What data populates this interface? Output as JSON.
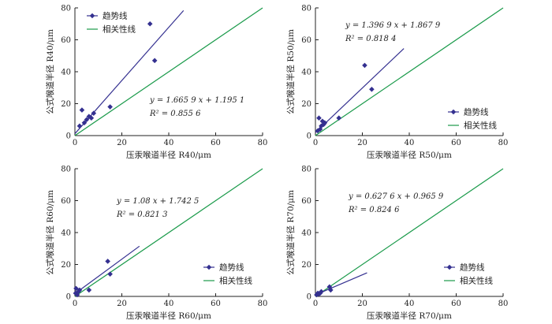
{
  "chart_data": [
    {
      "type": "scatter",
      "id": "r40",
      "xlabel": "压汞喉道半径 R40/μm",
      "ylabel": "公式喉道半径 R40/μm",
      "xlim": [
        0,
        80
      ],
      "ylim": [
        0,
        80
      ],
      "xticks": [
        0,
        20,
        40,
        60,
        80
      ],
      "yticks": [
        0,
        20,
        40,
        60,
        80
      ],
      "points": [
        [
          2,
          6
        ],
        [
          3,
          16
        ],
        [
          4,
          8
        ],
        [
          5,
          10
        ],
        [
          6,
          12
        ],
        [
          7,
          11
        ],
        [
          8,
          14
        ],
        [
          15,
          18
        ],
        [
          32,
          70
        ],
        [
          34,
          47
        ]
      ],
      "trend": {
        "slope": 1.6659,
        "intercept": 1.1951,
        "x_end": 46.3,
        "r2": 0.8556
      },
      "equation_text": "y = 1.665 9 x + 1.195 1",
      "r2_text": "R² = 0.855 6",
      "legend": {
        "trend": "趋势线",
        "identity": "相关性线",
        "position": "top-left"
      },
      "colors": {
        "trend": "#343090",
        "identity": "#1a9a4a",
        "points": "#343090"
      }
    },
    {
      "type": "scatter",
      "id": "r50",
      "xlabel": "压汞喉道半径 R50/μm",
      "ylabel": "公式喉道半径 R50/μm",
      "xlim": [
        0,
        80
      ],
      "ylim": [
        0,
        80
      ],
      "xticks": [
        0,
        20,
        40,
        60,
        80
      ],
      "yticks": [
        0,
        20,
        40,
        60,
        80
      ],
      "points": [
        [
          1,
          3
        ],
        [
          1.5,
          11
        ],
        [
          2,
          4
        ],
        [
          2.5,
          6
        ],
        [
          3,
          9
        ],
        [
          3.5,
          7
        ],
        [
          4,
          8
        ],
        [
          10,
          11
        ],
        [
          21,
          44
        ],
        [
          24,
          29
        ]
      ],
      "trend": {
        "slope": 1.3969,
        "intercept": 1.8679,
        "x_end": 37.7,
        "r2": 0.8184
      },
      "equation_text": "y = 1.396 9 x + 1.867 9",
      "r2_text": "R² = 0.818 4",
      "legend": {
        "trend": "趋势线",
        "identity": "相关性线",
        "position": "bottom-right"
      },
      "colors": {
        "trend": "#343090",
        "identity": "#1a9a4a",
        "points": "#343090"
      }
    },
    {
      "type": "scatter",
      "id": "r60",
      "xlabel": "压汞喉道半径 R60/μm",
      "ylabel": "公式喉道半径 R60/μm",
      "xlim": [
        0,
        80
      ],
      "ylim": [
        0,
        80
      ],
      "xticks": [
        0,
        20,
        40,
        60,
        80
      ],
      "yticks": [
        0,
        20,
        40,
        60,
        80
      ],
      "points": [
        [
          0.3,
          2
        ],
        [
          0.5,
          5
        ],
        [
          1,
          1
        ],
        [
          1.5,
          3
        ],
        [
          2,
          4
        ],
        [
          6,
          4
        ],
        [
          14,
          22
        ],
        [
          15,
          14
        ]
      ],
      "trend": {
        "slope": 1.08,
        "intercept": 1.7425,
        "x_end": 27.5,
        "r2": 0.8213
      },
      "equation_text": "y = 1.08 x + 1.742 5",
      "r2_text": "R² = 0.821 3",
      "legend": {
        "trend": "趋势线",
        "identity": "相关性线",
        "position": "bottom-right"
      },
      "colors": {
        "trend": "#343090",
        "identity": "#1a9a4a",
        "points": "#343090"
      }
    },
    {
      "type": "scatter",
      "id": "r70",
      "xlabel": "压汞喉道半径 R70/μm",
      "ylabel": "公式喉道半径 R70/μm",
      "xlim": [
        0,
        80
      ],
      "ylim": [
        0,
        80
      ],
      "xticks": [
        0,
        20,
        40,
        60,
        80
      ],
      "yticks": [
        0,
        20,
        40,
        60,
        80
      ],
      "points": [
        [
          0.5,
          1
        ],
        [
          1,
          2
        ],
        [
          1.5,
          1.5
        ],
        [
          2,
          2
        ],
        [
          2.5,
          3
        ],
        [
          6,
          6
        ],
        [
          6.5,
          4
        ]
      ],
      "trend": {
        "slope": 0.6276,
        "intercept": 0.9659,
        "x_end": 22,
        "r2": 0.8246
      },
      "equation_text": "y = 0.627 6 x + 0.965 9",
      "r2_text": "R² = 0.824 6",
      "legend": {
        "trend": "趋势线",
        "identity": "相关性线",
        "position": "bottom-right"
      },
      "colors": {
        "trend": "#343090",
        "identity": "#1a9a4a",
        "points": "#343090"
      }
    }
  ]
}
